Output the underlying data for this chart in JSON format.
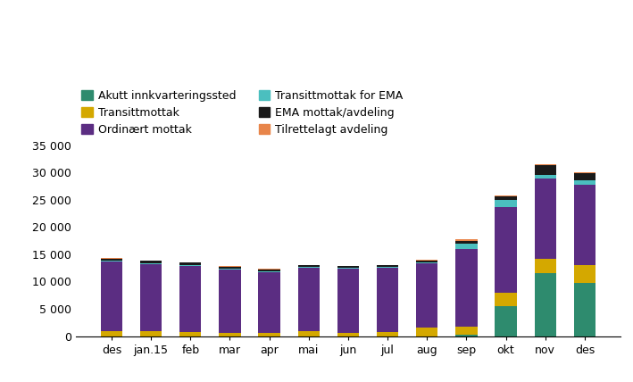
{
  "categories": [
    "des",
    "jan.15",
    "feb",
    "mar",
    "apr",
    "mai",
    "jun",
    "jul",
    "aug",
    "sep",
    "okt",
    "nov",
    "des"
  ],
  "series": [
    {
      "label": "Akutt innkvarteringssted",
      "color": "#2e8b6e",
      "values": [
        0,
        0,
        0,
        0,
        0,
        0,
        0,
        0,
        0,
        200,
        5500,
        11500,
        9800
      ]
    },
    {
      "label": "Transittmottak",
      "color": "#d4a800",
      "values": [
        1000,
        900,
        700,
        550,
        550,
        850,
        550,
        750,
        1500,
        1600,
        2500,
        2700,
        3300
      ]
    },
    {
      "label": "Ordinært mottak",
      "color": "#5b2d82",
      "values": [
        12600,
        12300,
        12200,
        11700,
        11200,
        11700,
        11800,
        11800,
        11800,
        14200,
        15700,
        14700,
        14700
      ]
    },
    {
      "label": "Transittmottak for EMA",
      "color": "#4bbfbf",
      "values": [
        200,
        200,
        200,
        150,
        150,
        150,
        150,
        150,
        200,
        1000,
        1200,
        700,
        750
      ]
    },
    {
      "label": "EMA mottak/avdeling",
      "color": "#1a1a1a",
      "values": [
        400,
        400,
        350,
        300,
        300,
        300,
        300,
        300,
        350,
        500,
        700,
        1700,
        1300
      ]
    },
    {
      "label": "Tilrettelagt avdeling",
      "color": "#e8854a",
      "values": [
        100,
        100,
        100,
        100,
        100,
        100,
        100,
        100,
        150,
        300,
        150,
        150,
        150
      ]
    }
  ],
  "ylim": [
    0,
    35000
  ],
  "yticks": [
    0,
    5000,
    10000,
    15000,
    20000,
    25000,
    30000,
    35000
  ],
  "ytick_labels": [
    "0",
    "5 000",
    "10 000",
    "15 000",
    "20 000",
    "25 000",
    "30 000",
    "35 000"
  ],
  "figsize": [
    7.09,
    4.28
  ],
  "dpi": 100,
  "legend": [
    {
      "label": "Akutt innkvarteringssted",
      "color": "#2e8b6e"
    },
    {
      "label": "Transittmottak",
      "color": "#d4a800"
    },
    {
      "label": "Ordinært mottak",
      "color": "#5b2d82"
    },
    {
      "label": "Transittmottak for EMA",
      "color": "#4bbfbf"
    },
    {
      "label": "EMA mottak/avdeling",
      "color": "#1a1a1a"
    },
    {
      "label": "Tilrettelagt avdeling",
      "color": "#e8854a"
    }
  ]
}
